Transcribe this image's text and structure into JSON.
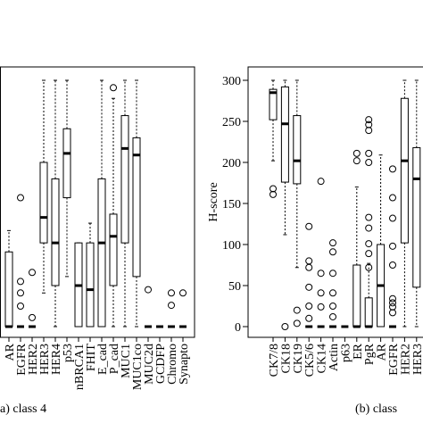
{
  "chart_data": [
    {
      "type": "box",
      "caption": "a) class 4",
      "ylim": [
        0,
        300
      ],
      "categories": [
        "AR",
        "EGFR",
        "HER2",
        "HER3",
        "HER4",
        "p53",
        "nBRCA1",
        "FHIT",
        "E_cad",
        "P_cad",
        "MUC1",
        "MUC1co",
        "MUC2d",
        "GCDFP",
        "Chromo",
        "Synapto"
      ],
      "boxes": [
        {
          "min": 0,
          "q1": 0,
          "median": 0,
          "q3": 91,
          "max": 117,
          "outliers": []
        },
        {
          "min": 0,
          "q1": 0,
          "median": 0,
          "q3": 0,
          "max": 0,
          "outliers": [
            157,
            55,
            41,
            25
          ]
        },
        {
          "min": 0,
          "q1": 0,
          "median": 0,
          "q3": 0,
          "max": 0,
          "outliers": [
            66,
            11
          ]
        },
        {
          "min": 41,
          "q1": 102,
          "median": 133,
          "q3": 200,
          "max": 300,
          "outliers": []
        },
        {
          "min": 0,
          "q1": 50,
          "median": 102,
          "q3": 180,
          "max": 300,
          "outliers": []
        },
        {
          "min": 61,
          "q1": 157,
          "median": 211,
          "q3": 241,
          "max": 300,
          "outliers": []
        },
        {
          "min": 0,
          "q1": 0,
          "median": 50,
          "q3": 102,
          "max": 102,
          "outliers": []
        },
        {
          "min": 0,
          "q1": 0,
          "median": 45,
          "q3": 102,
          "max": 126,
          "outliers": []
        },
        {
          "min": 0,
          "q1": 0,
          "median": 102,
          "q3": 180,
          "max": 300,
          "outliers": []
        },
        {
          "min": 0,
          "q1": 50,
          "median": 110,
          "q3": 137,
          "max": 278,
          "outliers": [
            291
          ]
        },
        {
          "min": 0,
          "q1": 102,
          "median": 217,
          "q3": 257,
          "max": 300,
          "outliers": []
        },
        {
          "min": 0,
          "q1": 61,
          "median": 209,
          "q3": 230,
          "max": 300,
          "outliers": []
        },
        {
          "min": 0,
          "q1": 0,
          "median": 0,
          "q3": 0,
          "max": 0,
          "outliers": [
            45
          ]
        },
        {
          "min": 0,
          "q1": 0,
          "median": 0,
          "q3": 0,
          "max": 0,
          "outliers": []
        },
        {
          "min": 0,
          "q1": 0,
          "median": 0,
          "q3": 0,
          "max": 0,
          "outliers": [
            41,
            26
          ]
        },
        {
          "min": 0,
          "q1": 0,
          "median": 0,
          "q3": 0,
          "max": 0,
          "outliers": [
            41
          ]
        }
      ]
    },
    {
      "type": "box",
      "caption": "(b) class",
      "ylabel": "H-score",
      "ylim": [
        0,
        300
      ],
      "yticks": [
        0,
        50,
        100,
        150,
        200,
        250,
        300
      ],
      "categories": [
        "CK7/8",
        "CK18",
        "CK19",
        "CK5/6",
        "CK14",
        "Actin",
        "p63",
        "ER",
        "PgR",
        "AR",
        "EGFR",
        "HER2",
        "HER3"
      ],
      "boxes": [
        {
          "min": 202,
          "q1": 252,
          "median": 285,
          "q3": 289,
          "max": 300,
          "outliers": [
            168,
            161
          ]
        },
        {
          "min": 112,
          "q1": 176,
          "median": 247,
          "q3": 292,
          "max": 300,
          "outliers": [
            0
          ]
        },
        {
          "min": 72,
          "q1": 174,
          "median": 202,
          "q3": 257,
          "max": 300,
          "outliers": [
            20,
            4
          ]
        },
        {
          "min": 0,
          "q1": 0,
          "median": 0,
          "q3": 0,
          "max": 0,
          "outliers": [
            122,
            80,
            72,
            48,
            25,
            10
          ]
        },
        {
          "min": 0,
          "q1": 0,
          "median": 0,
          "q3": 0,
          "max": 0,
          "outliers": [
            177,
            65,
            41,
            24
          ]
        },
        {
          "min": 0,
          "q1": 0,
          "median": 0,
          "q3": 0,
          "max": 0,
          "outliers": [
            102,
            91,
            65,
            41,
            25,
            12
          ]
        },
        {
          "min": 0,
          "q1": 0,
          "median": 0,
          "q3": 0,
          "max": 0,
          "outliers": []
        },
        {
          "min": 0,
          "q1": 0,
          "median": 0,
          "q3": 75,
          "max": 170,
          "outliers": [
            211,
            202
          ]
        },
        {
          "min": 0,
          "q1": 0,
          "median": 0,
          "q3": 35,
          "max": 77,
          "outliers": [
            252,
            246,
            239,
            211,
            200,
            133,
            120,
            101,
            89,
            72
          ]
        },
        {
          "min": 0,
          "q1": 0,
          "median": 50,
          "q3": 100,
          "max": 209,
          "outliers": []
        },
        {
          "min": 0,
          "q1": 0,
          "median": 0,
          "q3": 0,
          "max": 0,
          "outliers": [
            192,
            157,
            132,
            98,
            75,
            34,
            29,
            24,
            17
          ]
        },
        {
          "min": 0,
          "q1": 102,
          "median": 202,
          "q3": 278,
          "max": 300,
          "outliers": []
        },
        {
          "min": 0,
          "q1": 48,
          "median": 180,
          "q3": 218,
          "max": 300,
          "outliers": []
        }
      ]
    }
  ]
}
